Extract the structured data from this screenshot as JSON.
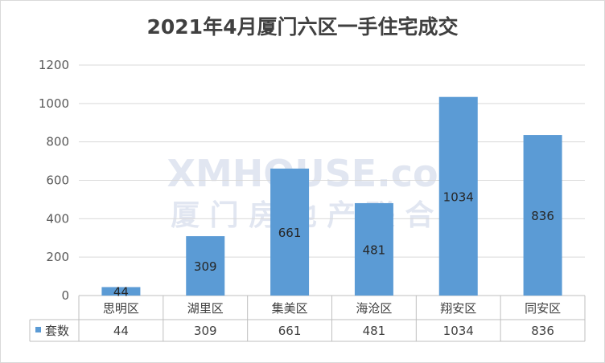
{
  "chart_data": {
    "type": "bar",
    "title": "2021年4月厦门六区一手住宅成交",
    "categories": [
      "思明区",
      "湖里区",
      "集美区",
      "海沧区",
      "翔安区",
      "同安区"
    ],
    "series": [
      {
        "name": "套数",
        "values": [
          44,
          309,
          661,
          481,
          1034,
          836
        ]
      }
    ],
    "ylim": [
      0,
      1200
    ],
    "yticks": [
      0,
      200,
      400,
      600,
      800,
      1000,
      1200
    ],
    "grid": true,
    "data_table": true,
    "legend": "data-table",
    "bar_color": "#5b9bd5"
  },
  "watermark": {
    "line1": "XMHOUSE.com",
    "line2": "厦 门 房 地 产 联 合 网"
  }
}
